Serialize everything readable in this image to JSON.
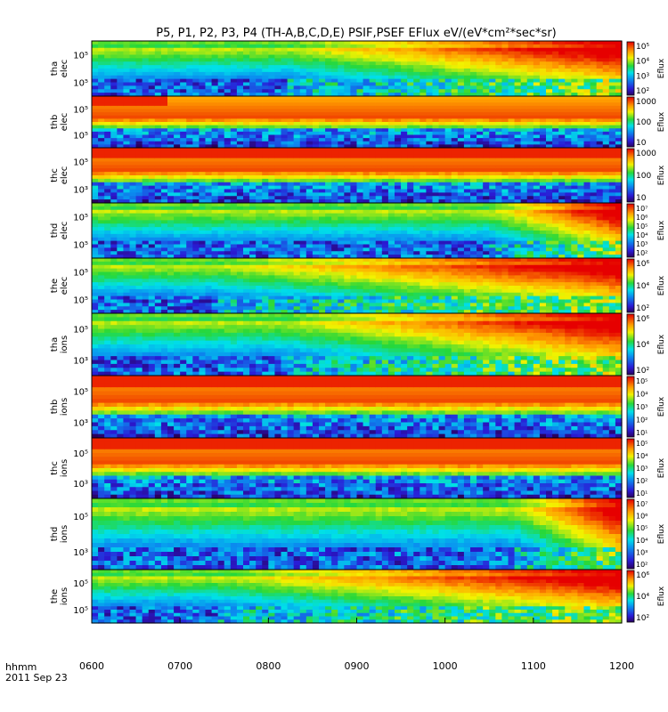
{
  "title": "P5, P1, P2, P3, P4 (TH-A,B,C,D,E) PSIF,PSEF EFlux eV/(eV*cm²*sec*sr)",
  "footer": {
    "format_label": "hhmm",
    "date_label": "2011 Sep 23"
  },
  "chart_data": {
    "type": "heatmap",
    "title": "P5, P1, P2, P3, P4 (TH-A,B,C,D,E) PSIF,PSEF EFlux eV/(eV*cm²*sec*sr)",
    "x_tick_labels": [
      "0600",
      "0700",
      "0800",
      "0900",
      "1000",
      "1100",
      "1200"
    ],
    "x_range_hours": [
      6,
      12
    ],
    "colorbar_label": "Eflux",
    "colormap": "rainbow",
    "panels": [
      {
        "label_line1": "tha",
        "label_line2": "elec",
        "y_ticks": [
          "10⁵",
          "10⁵"
        ],
        "cbar_ticks": [
          "10⁵",
          "10⁴",
          "10³",
          "10²"
        ],
        "regime": "drop",
        "transition_hour": 8.22,
        "hi_band": "dense"
      },
      {
        "label_line1": "thb",
        "label_line2": "elec",
        "y_ticks": [
          "10⁵",
          "10⁵"
        ],
        "cbar_ticks": [
          "1000",
          "100",
          "10"
        ],
        "regime": "tail",
        "transition_hour": 6.85,
        "hi_band": "solarwind"
      },
      {
        "label_line1": "thc",
        "label_line2": "elec",
        "y_ticks": [
          "10⁵",
          "10³"
        ],
        "cbar_ticks": [
          "1000",
          "100",
          "10"
        ],
        "regime": "tail",
        "transition_hour": 12,
        "hi_band": "solarwind"
      },
      {
        "label_line1": "thd",
        "label_line2": "elec",
        "y_ticks": [
          "10⁵",
          "10⁵"
        ],
        "cbar_ticks": [
          "10⁷",
          "10⁶",
          "10⁵",
          "10⁴",
          "10³",
          "10²"
        ],
        "regime": "gradual",
        "transition_hour": 10.5,
        "hi_band": "dense"
      },
      {
        "label_line1": "the",
        "label_line2": "elec",
        "y_ticks": [
          "10⁵",
          "10⁵"
        ],
        "cbar_ticks": [
          "10⁶",
          "10⁴",
          "10²"
        ],
        "regime": "drop",
        "transition_hour": 7.45,
        "hi_band": "dense"
      },
      {
        "label_line1": "tha",
        "label_line2": "ions",
        "y_ticks": [
          "10⁵",
          "10³"
        ],
        "cbar_ticks": [
          "10⁶",
          "10⁴",
          "10²"
        ],
        "regime": "drop",
        "transition_hour": 8.22,
        "hi_band": "dense"
      },
      {
        "label_line1": "thb",
        "label_line2": "ions",
        "y_ticks": [
          "10⁵",
          "10³"
        ],
        "cbar_ticks": [
          "10⁵",
          "10⁴",
          "10³",
          "10²",
          "10¹"
        ],
        "regime": "tail",
        "transition_hour": 12,
        "hi_band": "solarwind"
      },
      {
        "label_line1": "thc",
        "label_line2": "ions",
        "y_ticks": [
          "10⁵",
          "10³"
        ],
        "cbar_ticks": [
          "10⁵",
          "10⁴",
          "10³",
          "10²",
          "10¹"
        ],
        "regime": "tail",
        "transition_hour": 12,
        "hi_band": "solarwind"
      },
      {
        "label_line1": "thd",
        "label_line2": "ions",
        "y_ticks": [
          "10⁵",
          "10³"
        ],
        "cbar_ticks": [
          "10⁷",
          "10⁶",
          "10⁵",
          "10⁴",
          "10³",
          "10²"
        ],
        "regime": "gradual",
        "transition_hour": 10.8,
        "hi_band": "dense"
      },
      {
        "label_line1": "the",
        "label_line2": "ions",
        "y_ticks": [
          "10⁵",
          "10⁵"
        ],
        "cbar_ticks": [
          "10⁶",
          "10⁴",
          "10²"
        ],
        "regime": "drop",
        "transition_hour": 7.45,
        "hi_band": "dense"
      }
    ]
  }
}
